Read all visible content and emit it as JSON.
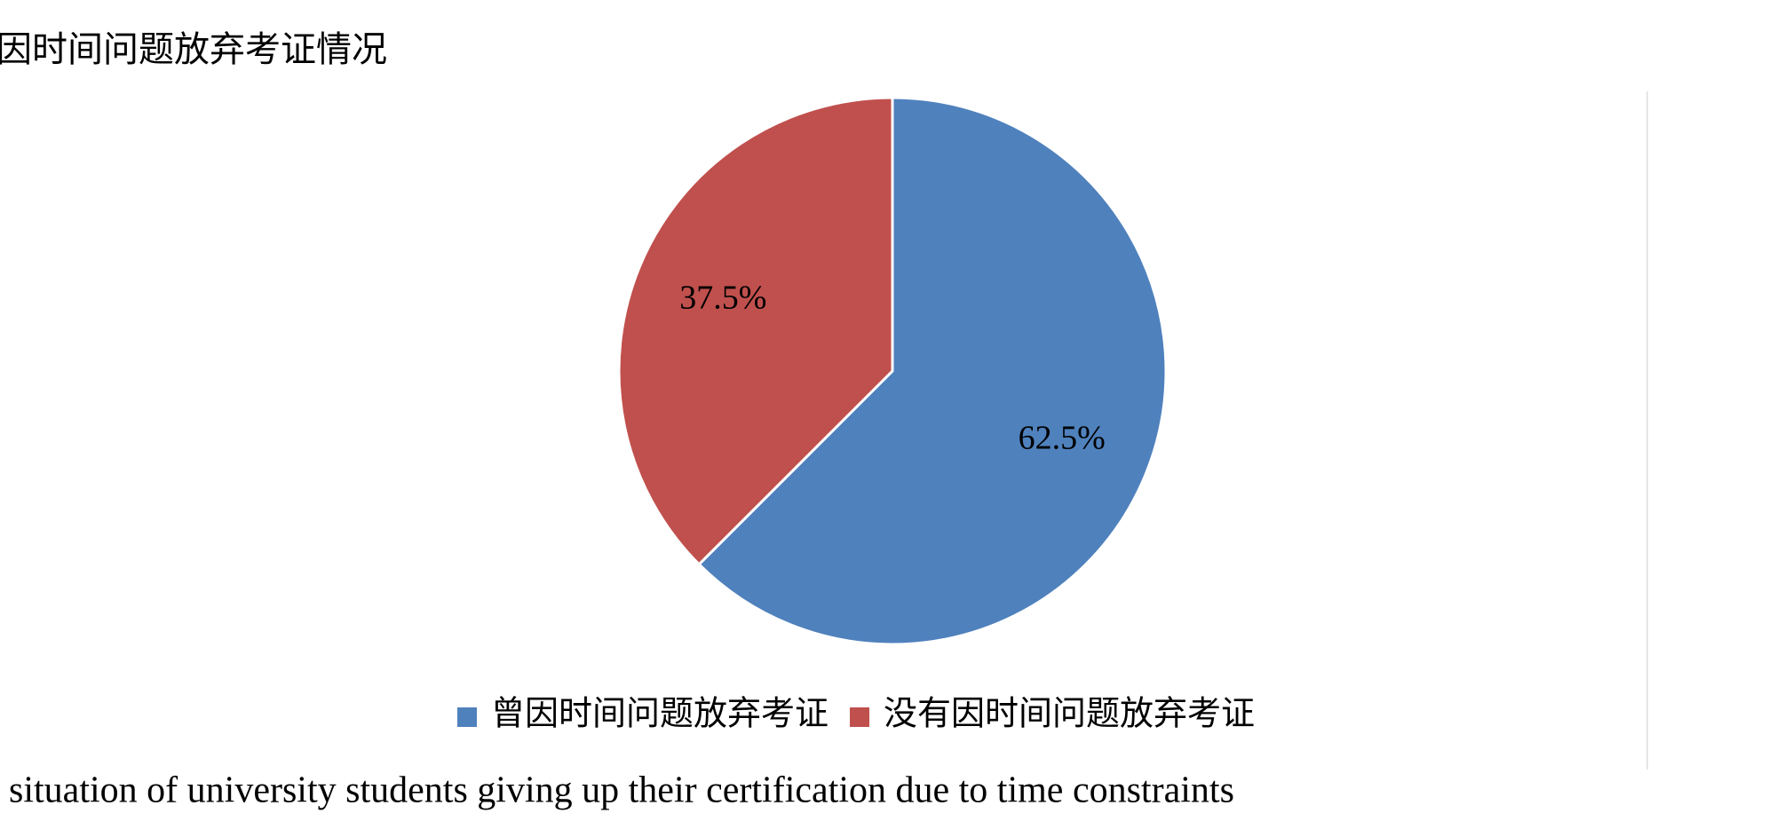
{
  "chart_data": {
    "type": "pie",
    "title": "因时间问题放弃考证情况",
    "categories": [
      "曾因时间问题放弃考证",
      "没有因时间问题放弃考证"
    ],
    "values": [
      62.5,
      37.5
    ],
    "value_labels": [
      "62.5%",
      "37.5%"
    ],
    "colors": [
      "#4f81bd",
      "#c0504d"
    ],
    "legend": "bottom"
  },
  "caption": "situation of university students giving up their certification due to time constraints"
}
